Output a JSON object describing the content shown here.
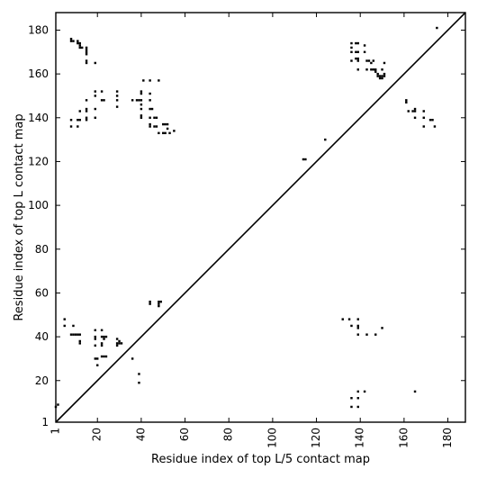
{
  "chart_data": {
    "type": "scatter",
    "title": "",
    "xlabel": "Residue index of top L/5 contact map",
    "ylabel": "Residue index of top L contact map",
    "xlim": [
      1,
      188
    ],
    "ylim": [
      1,
      188
    ],
    "xticks": [
      1,
      20,
      40,
      60,
      80,
      100,
      120,
      140,
      160,
      180
    ],
    "yticks": [
      1,
      20,
      40,
      60,
      80,
      100,
      120,
      140,
      160,
      180
    ],
    "xtick_labels": [
      "1",
      "20",
      "40",
      "60",
      "80",
      "100",
      "120",
      "140",
      "160",
      "180"
    ],
    "ytick_labels": [
      "1",
      "20",
      "40",
      "60",
      "80",
      "100",
      "120",
      "140",
      "160",
      "180"
    ],
    "diagonal": true,
    "grid": false,
    "marker_color": "#000000",
    "series": [
      {
        "region": "upper-left (top L contacts)",
        "points": [
          [
            8,
            176
          ],
          [
            8,
            175
          ],
          [
            9,
            175
          ],
          [
            11,
            174
          ],
          [
            11,
            175
          ],
          [
            12,
            174
          ],
          [
            12,
            173
          ],
          [
            12,
            172
          ],
          [
            13,
            172
          ],
          [
            15,
            172
          ],
          [
            15,
            171
          ],
          [
            15,
            170
          ],
          [
            15,
            169
          ],
          [
            15,
            166
          ],
          [
            15,
            165
          ],
          [
            19,
            165
          ],
          [
            8,
            139
          ],
          [
            8,
            136
          ],
          [
            11,
            139
          ],
          [
            11,
            136
          ],
          [
            12,
            143
          ],
          [
            12,
            139
          ],
          [
            15,
            148
          ],
          [
            15,
            144
          ],
          [
            15,
            143
          ],
          [
            15,
            140
          ],
          [
            15,
            139
          ],
          [
            19,
            152
          ],
          [
            19,
            150
          ],
          [
            19,
            144
          ],
          [
            19,
            140
          ],
          [
            22,
            152
          ],
          [
            22,
            148
          ],
          [
            23,
            148
          ],
          [
            29,
            152
          ],
          [
            29,
            150
          ],
          [
            29,
            148
          ],
          [
            29,
            145
          ],
          [
            36,
            148
          ],
          [
            38,
            148
          ],
          [
            39,
            148
          ],
          [
            40,
            151
          ],
          [
            40,
            152
          ],
          [
            40,
            148
          ],
          [
            40,
            146
          ],
          [
            40,
            144
          ],
          [
            40,
            141
          ],
          [
            40,
            140
          ],
          [
            41,
            157
          ],
          [
            44,
            157
          ],
          [
            44,
            151
          ],
          [
            44,
            148
          ],
          [
            44,
            144
          ],
          [
            45,
            144
          ],
          [
            44,
            140
          ],
          [
            44,
            137
          ],
          [
            44,
            136
          ],
          [
            46,
            140
          ],
          [
            47,
            140
          ],
          [
            46,
            136
          ],
          [
            47,
            136
          ],
          [
            48,
            157
          ],
          [
            48,
            133
          ],
          [
            50,
            137
          ],
          [
            51,
            137
          ],
          [
            52,
            137
          ],
          [
            50,
            133
          ],
          [
            51,
            133
          ],
          [
            52,
            135
          ],
          [
            53,
            133
          ],
          [
            55,
            134
          ],
          [
            124,
            130
          ],
          [
            114,
            121
          ],
          [
            115,
            121
          ]
        ]
      },
      {
        "region": "upper-right (top L contacts)",
        "points": [
          [
            136,
            174
          ],
          [
            136,
            172
          ],
          [
            136,
            170
          ],
          [
            136,
            166
          ],
          [
            138,
            174
          ],
          [
            139,
            174
          ],
          [
            138,
            170
          ],
          [
            139,
            170
          ],
          [
            138,
            167
          ],
          [
            139,
            167
          ],
          [
            139,
            166
          ],
          [
            139,
            162
          ],
          [
            142,
            173
          ],
          [
            142,
            170
          ],
          [
            143,
            166
          ],
          [
            144,
            166
          ],
          [
            145,
            165
          ],
          [
            146,
            166
          ],
          [
            143,
            162
          ],
          [
            145,
            162
          ],
          [
            146,
            162
          ],
          [
            147,
            162
          ],
          [
            147,
            161
          ],
          [
            148,
            160
          ],
          [
            148,
            159
          ],
          [
            149,
            159
          ],
          [
            149,
            158
          ],
          [
            150,
            159
          ],
          [
            150,
            158
          ],
          [
            151,
            159
          ],
          [
            151,
            160
          ],
          [
            150,
            162
          ],
          [
            151,
            165
          ],
          [
            161,
            148
          ],
          [
            161,
            147
          ],
          [
            162,
            143
          ],
          [
            164,
            143
          ],
          [
            165,
            144
          ],
          [
            165,
            143
          ],
          [
            165,
            140
          ],
          [
            169,
            143
          ],
          [
            169,
            140
          ],
          [
            169,
            136
          ],
          [
            172,
            139
          ],
          [
            173,
            139
          ],
          [
            174,
            136
          ],
          [
            175,
            181
          ]
        ]
      },
      {
        "region": "lower-left (top L/5 contacts)",
        "points": [
          [
            5,
            48
          ],
          [
            5,
            45
          ],
          [
            9,
            45
          ],
          [
            8,
            41
          ],
          [
            9,
            41
          ],
          [
            10,
            41
          ],
          [
            11,
            41
          ],
          [
            12,
            41
          ],
          [
            12,
            38
          ],
          [
            12,
            37
          ],
          [
            19,
            43
          ],
          [
            19,
            40
          ],
          [
            19,
            39
          ],
          [
            19,
            36
          ],
          [
            19,
            30
          ],
          [
            20,
            30
          ],
          [
            20,
            27
          ],
          [
            22,
            43
          ],
          [
            22,
            40
          ],
          [
            23,
            40
          ],
          [
            23,
            39
          ],
          [
            24,
            40
          ],
          [
            22,
            37
          ],
          [
            22,
            36
          ],
          [
            22,
            31
          ],
          [
            23,
            31
          ],
          [
            24,
            31
          ],
          [
            29,
            39
          ],
          [
            30,
            38
          ],
          [
            29,
            37
          ],
          [
            30,
            37
          ],
          [
            31,
            37
          ],
          [
            29,
            36
          ],
          [
            36,
            30
          ],
          [
            39,
            23
          ],
          [
            39,
            19
          ],
          [
            44,
            56
          ],
          [
            44,
            55
          ],
          [
            48,
            56
          ],
          [
            48,
            55
          ],
          [
            49,
            56
          ],
          [
            48,
            54
          ],
          [
            2,
            9
          ],
          [
            1,
            8
          ]
        ]
      },
      {
        "region": "lower-right (top L/5 contacts)",
        "points": [
          [
            132,
            48
          ],
          [
            135,
            48
          ],
          [
            136,
            45
          ],
          [
            139,
            48
          ],
          [
            139,
            45
          ],
          [
            139,
            44
          ],
          [
            139,
            41
          ],
          [
            143,
            41
          ],
          [
            147,
            41
          ],
          [
            150,
            44
          ],
          [
            136,
            12
          ],
          [
            136,
            8
          ],
          [
            139,
            15
          ],
          [
            139,
            12
          ],
          [
            139,
            8
          ],
          [
            142,
            15
          ],
          [
            165,
            15
          ]
        ]
      }
    ]
  }
}
